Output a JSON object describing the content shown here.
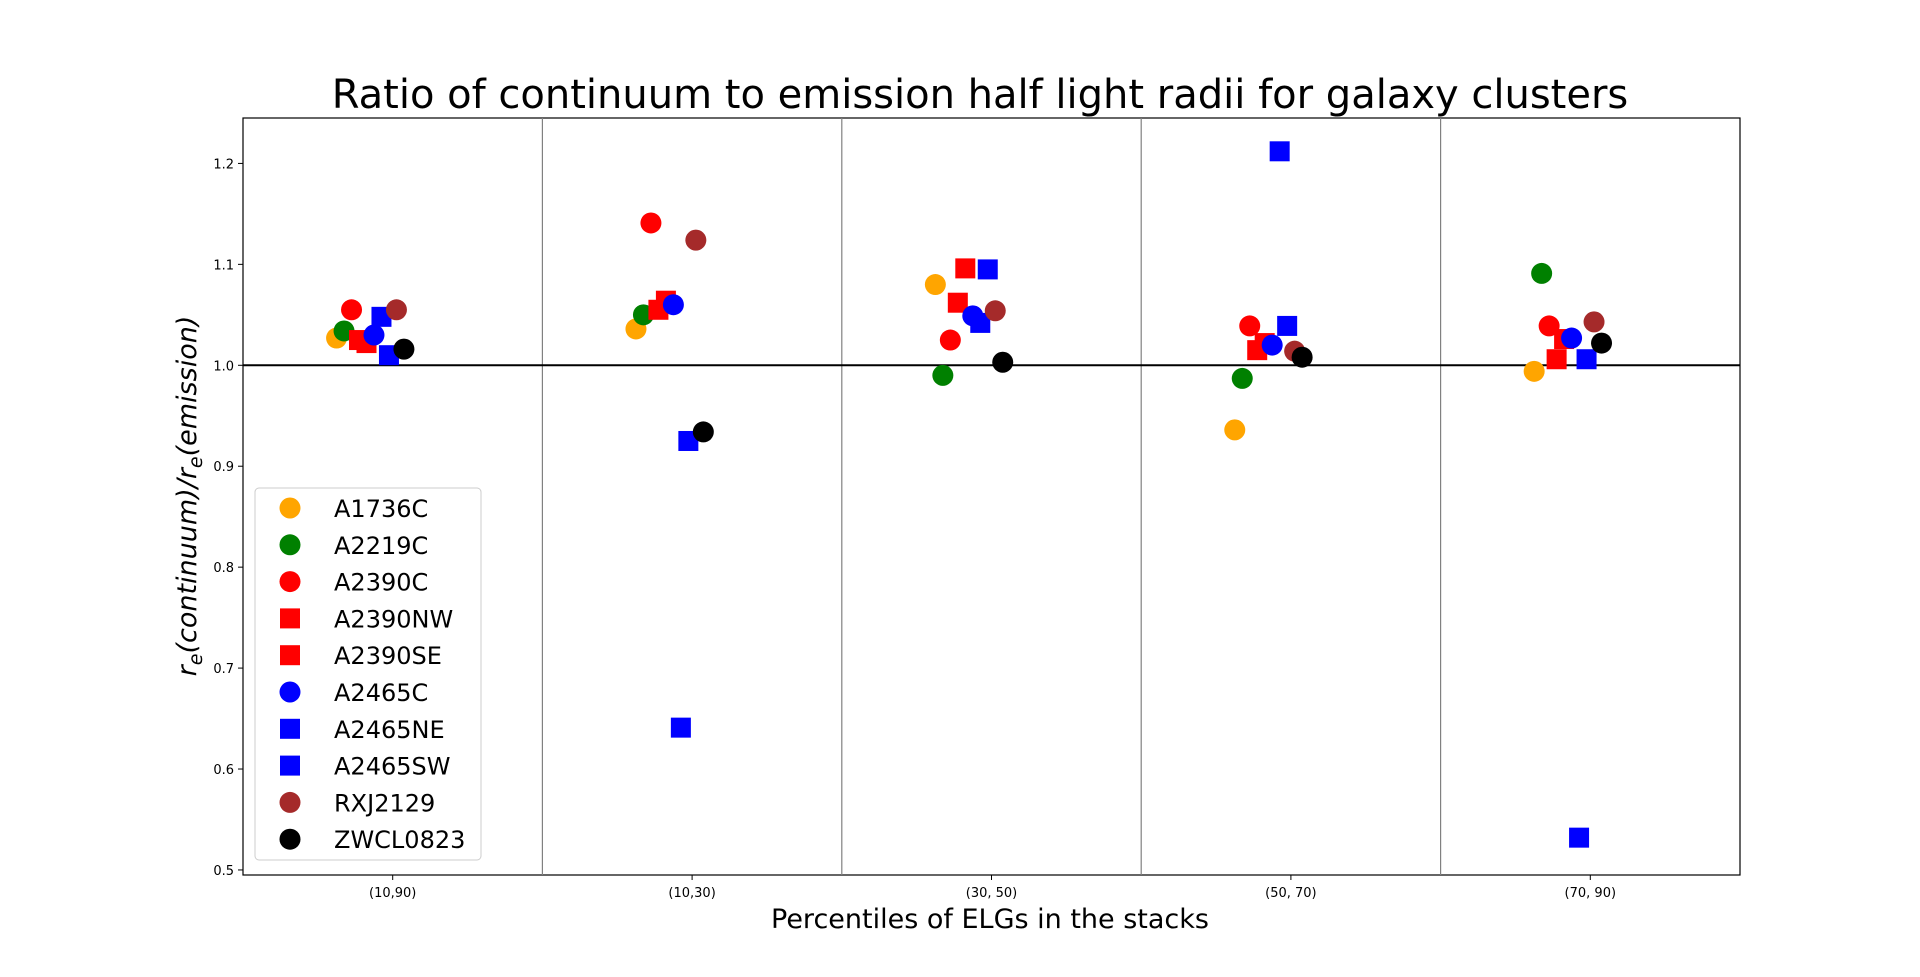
{
  "chart_data": {
    "type": "scatter",
    "title": "Ratio of continuum to emission half light radii for galaxy clusters",
    "xlabel": "Percentiles of ELGs in the stacks",
    "ylabel_parts": [
      "r",
      "e",
      "(continuum)/r",
      "e",
      "(emission)"
    ],
    "categories": [
      "(10,90)",
      "(10,30)",
      "(30, 50)",
      "(50, 70)",
      "(70, 90)"
    ],
    "ylim": [
      0.495,
      1.245
    ],
    "yticks": [
      0.5,
      0.6,
      0.7,
      0.8,
      0.9,
      1.0,
      1.1,
      1.2
    ],
    "reference_line": 1.0,
    "legend_position": "lower left",
    "series": [
      {
        "name": "A1736C",
        "color": "#ffa500",
        "marker": "circle",
        "offset": -0.3,
        "values": [
          1.027,
          1.036,
          1.08,
          0.936,
          0.994
        ]
      },
      {
        "name": "A2219C",
        "color": "#008000",
        "marker": "circle",
        "offset": -0.26,
        "values": [
          1.034,
          1.05,
          0.99,
          0.987,
          1.091
        ]
      },
      {
        "name": "A2390C",
        "color": "#ff0000",
        "marker": "circle",
        "offset": -0.22,
        "values": [
          1.055,
          1.141,
          1.025,
          1.039,
          1.039
        ]
      },
      {
        "name": "A2390NW",
        "color": "#ff0000",
        "marker": "square",
        "offset": -0.18,
        "values": [
          1.025,
          1.055,
          1.062,
          1.015,
          1.006
        ]
      },
      {
        "name": "A2390SE",
        "color": "#ff0000",
        "marker": "square",
        "offset": -0.14,
        "values": [
          1.022,
          1.064,
          1.096,
          1.022,
          1.026
        ]
      },
      {
        "name": "A2465C",
        "color": "#0000ff",
        "marker": "circle",
        "offset": -0.1,
        "values": [
          1.03,
          1.06,
          1.049,
          1.02,
          1.027
        ]
      },
      {
        "name": "A2465NE",
        "color": "#0000ff",
        "marker": "square",
        "offset": -0.06,
        "values": [
          1.048,
          0.641,
          1.042,
          1.212,
          0.532
        ]
      },
      {
        "name": "A2465SW",
        "color": "#0000ff",
        "marker": "square",
        "offset": -0.02,
        "values": [
          1.01,
          0.925,
          1.095,
          1.039,
          1.006
        ]
      },
      {
        "name": "RXJ2129",
        "color": "#a52a2a",
        "marker": "circle",
        "offset": 0.02,
        "values": [
          1.055,
          1.124,
          1.054,
          1.014,
          1.043
        ]
      },
      {
        "name": "ZWCL0823",
        "color": "#000000",
        "marker": "circle",
        "offset": 0.06,
        "values": [
          1.016,
          0.934,
          1.003,
          1.008,
          1.022
        ]
      }
    ]
  }
}
